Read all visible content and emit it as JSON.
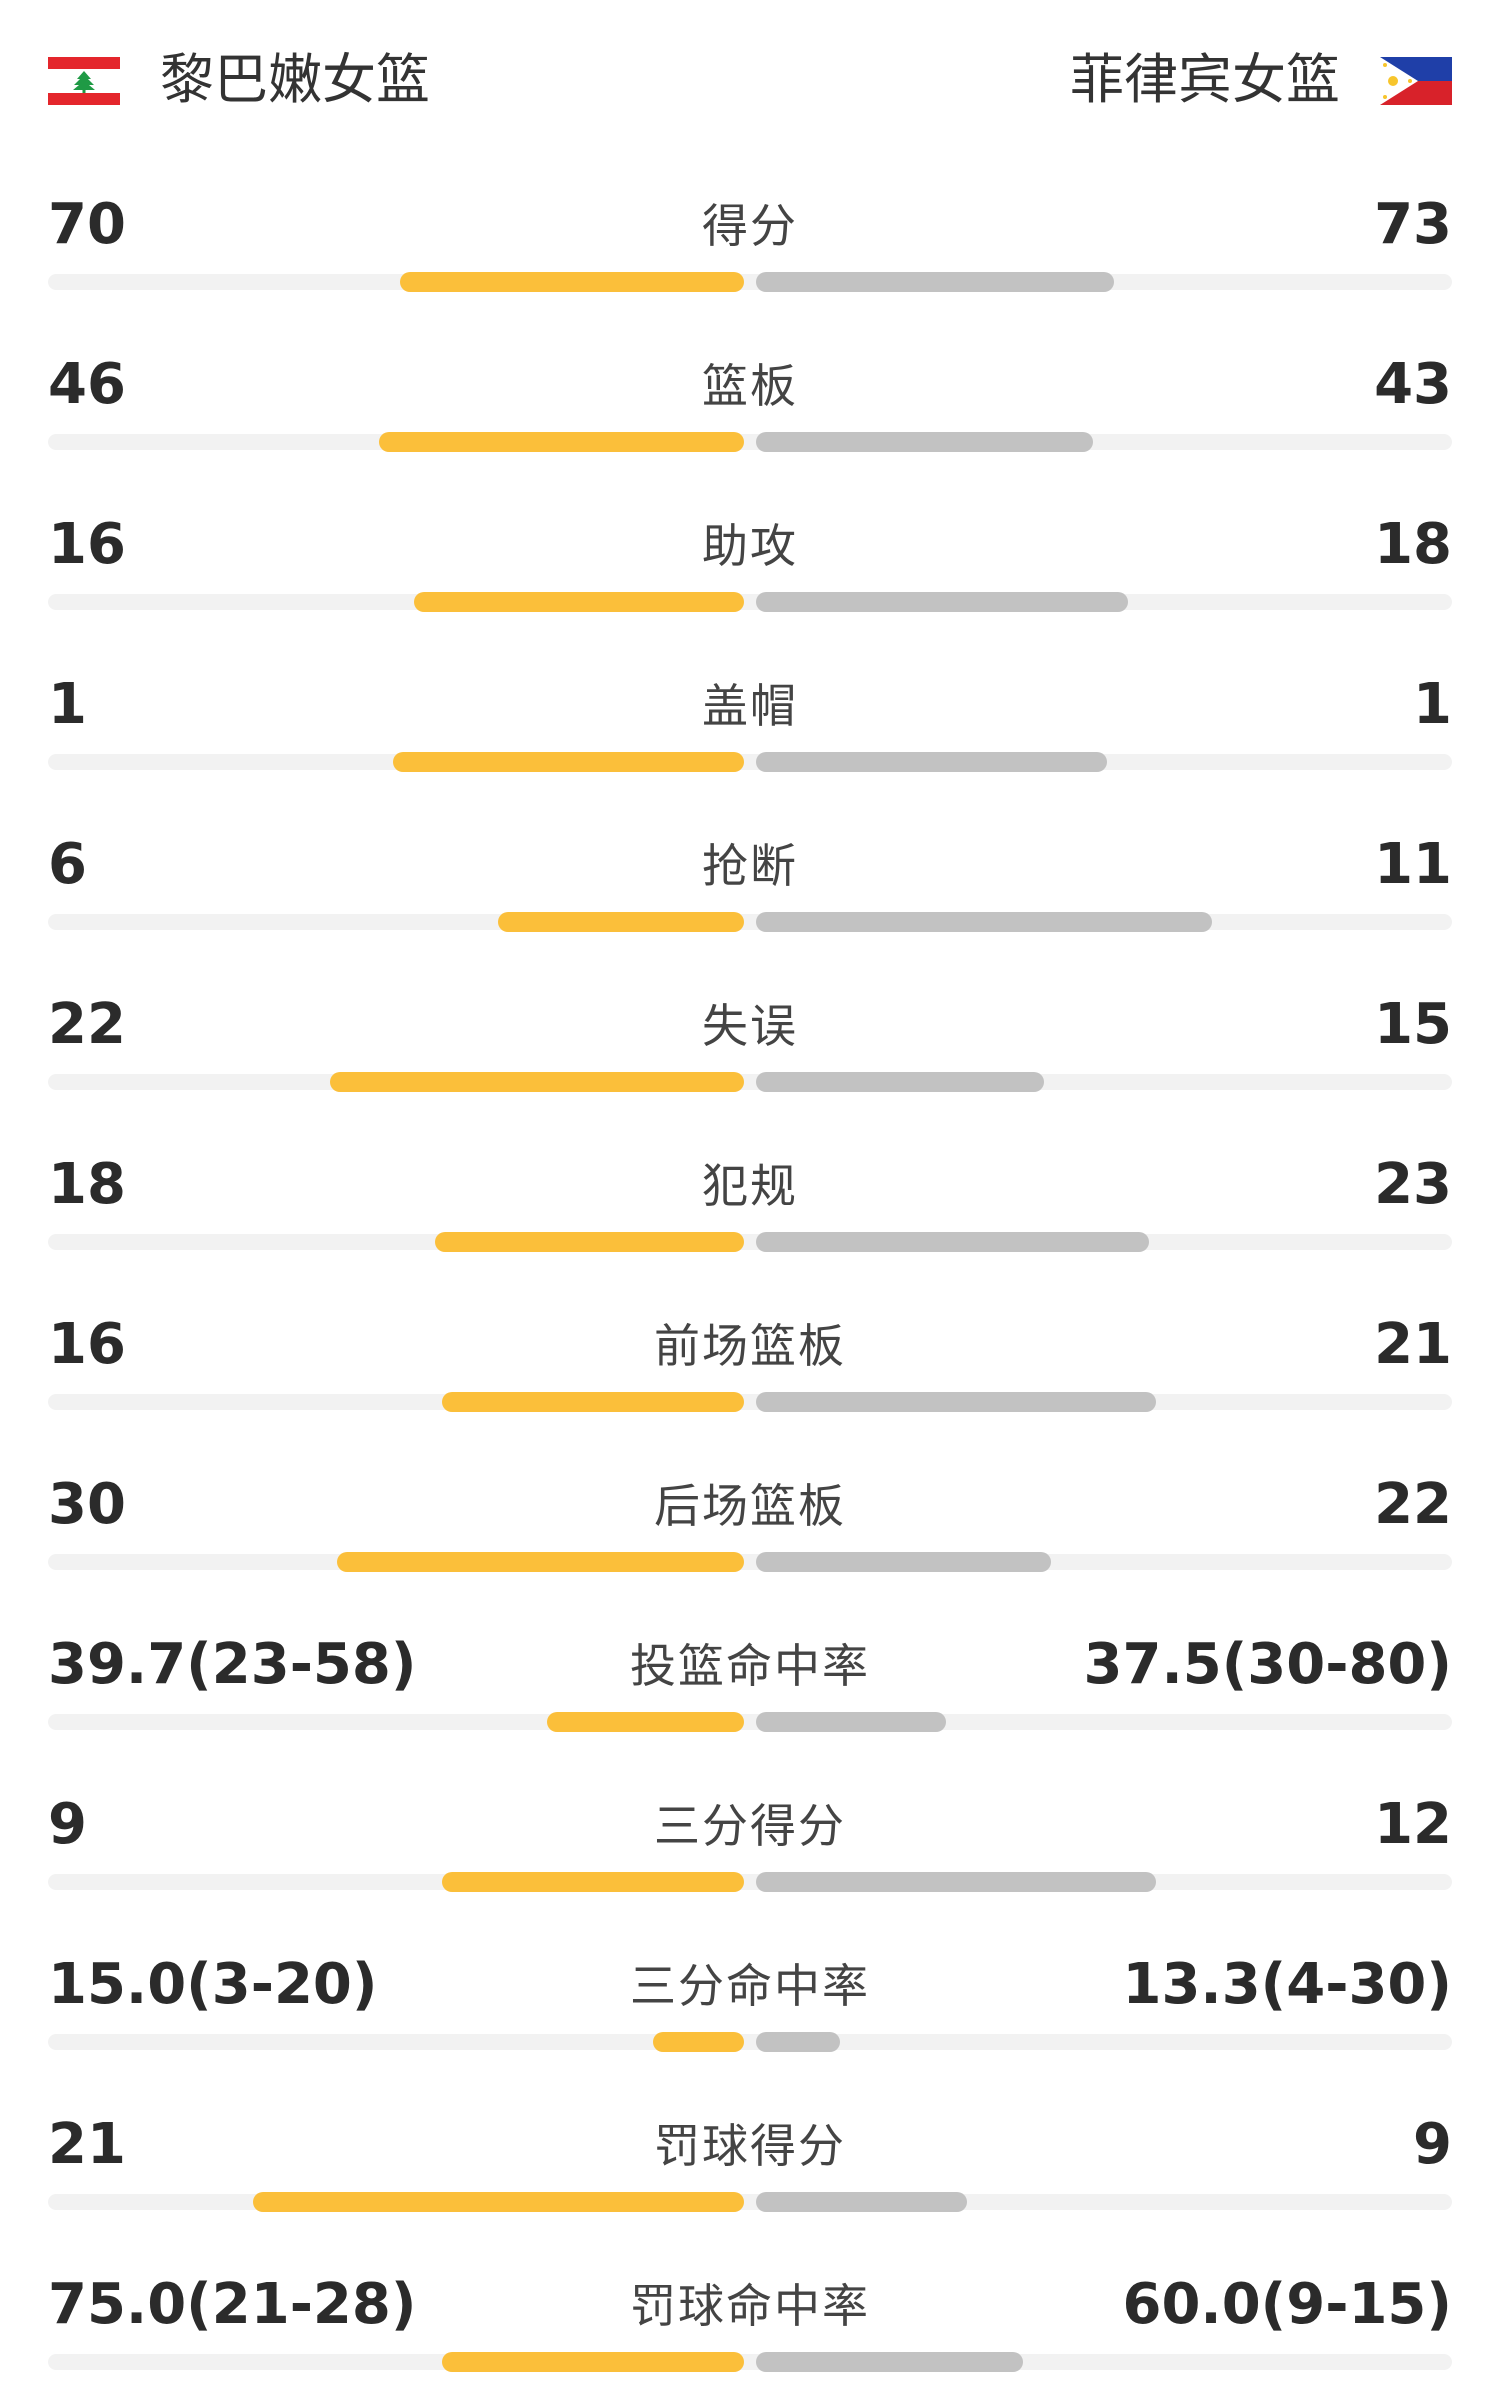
{
  "teams": {
    "home": {
      "name": "黎巴嫩女篮",
      "flag_icon": "lebanon-flag-icon"
    },
    "away": {
      "name": "菲律宾女篮",
      "flag_icon": "philippines-flag-icon"
    }
  },
  "colors": {
    "home_bar": "#fbbf3a",
    "away_bar": "#c2c2c2",
    "track": "#f2f2f2"
  },
  "stats": [
    {
      "label": "得分",
      "home": "70",
      "away": "73",
      "home_fill": 0.49,
      "away_fill": 0.51
    },
    {
      "label": "篮板",
      "home": "46",
      "away": "43",
      "home_fill": 0.52,
      "away_fill": 0.48
    },
    {
      "label": "助攻",
      "home": "16",
      "away": "18",
      "home_fill": 0.47,
      "away_fill": 0.53
    },
    {
      "label": "盖帽",
      "home": "1",
      "away": "1",
      "home_fill": 0.5,
      "away_fill": 0.5
    },
    {
      "label": "抢断",
      "home": "6",
      "away": "11",
      "home_fill": 0.35,
      "away_fill": 0.65
    },
    {
      "label": "失误",
      "home": "22",
      "away": "15",
      "home_fill": 0.59,
      "away_fill": 0.41
    },
    {
      "label": "犯规",
      "home": "18",
      "away": "23",
      "home_fill": 0.44,
      "away_fill": 0.56
    },
    {
      "label": "前场篮板",
      "home": "16",
      "away": "21",
      "home_fill": 0.43,
      "away_fill": 0.57
    },
    {
      "label": "后场篮板",
      "home": "30",
      "away": "22",
      "home_fill": 0.58,
      "away_fill": 0.42
    },
    {
      "label": "投篮命中率",
      "home": "39.7(23-58)",
      "away": "37.5(30-80)",
      "home_fill": 0.28,
      "away_fill": 0.27
    },
    {
      "label": "三分得分",
      "home": "9",
      "away": "12",
      "home_fill": 0.43,
      "away_fill": 0.57
    },
    {
      "label": "三分命中率",
      "home": "15.0(3-20)",
      "away": "13.3(4-30)",
      "home_fill": 0.13,
      "away_fill": 0.12
    },
    {
      "label": "罚球得分",
      "home": "21",
      "away": "9",
      "home_fill": 0.7,
      "away_fill": 0.3
    },
    {
      "label": "罚球命中率",
      "home": "75.0(21-28)",
      "away": "60.0(9-15)",
      "home_fill": 0.43,
      "away_fill": 0.38
    }
  ]
}
